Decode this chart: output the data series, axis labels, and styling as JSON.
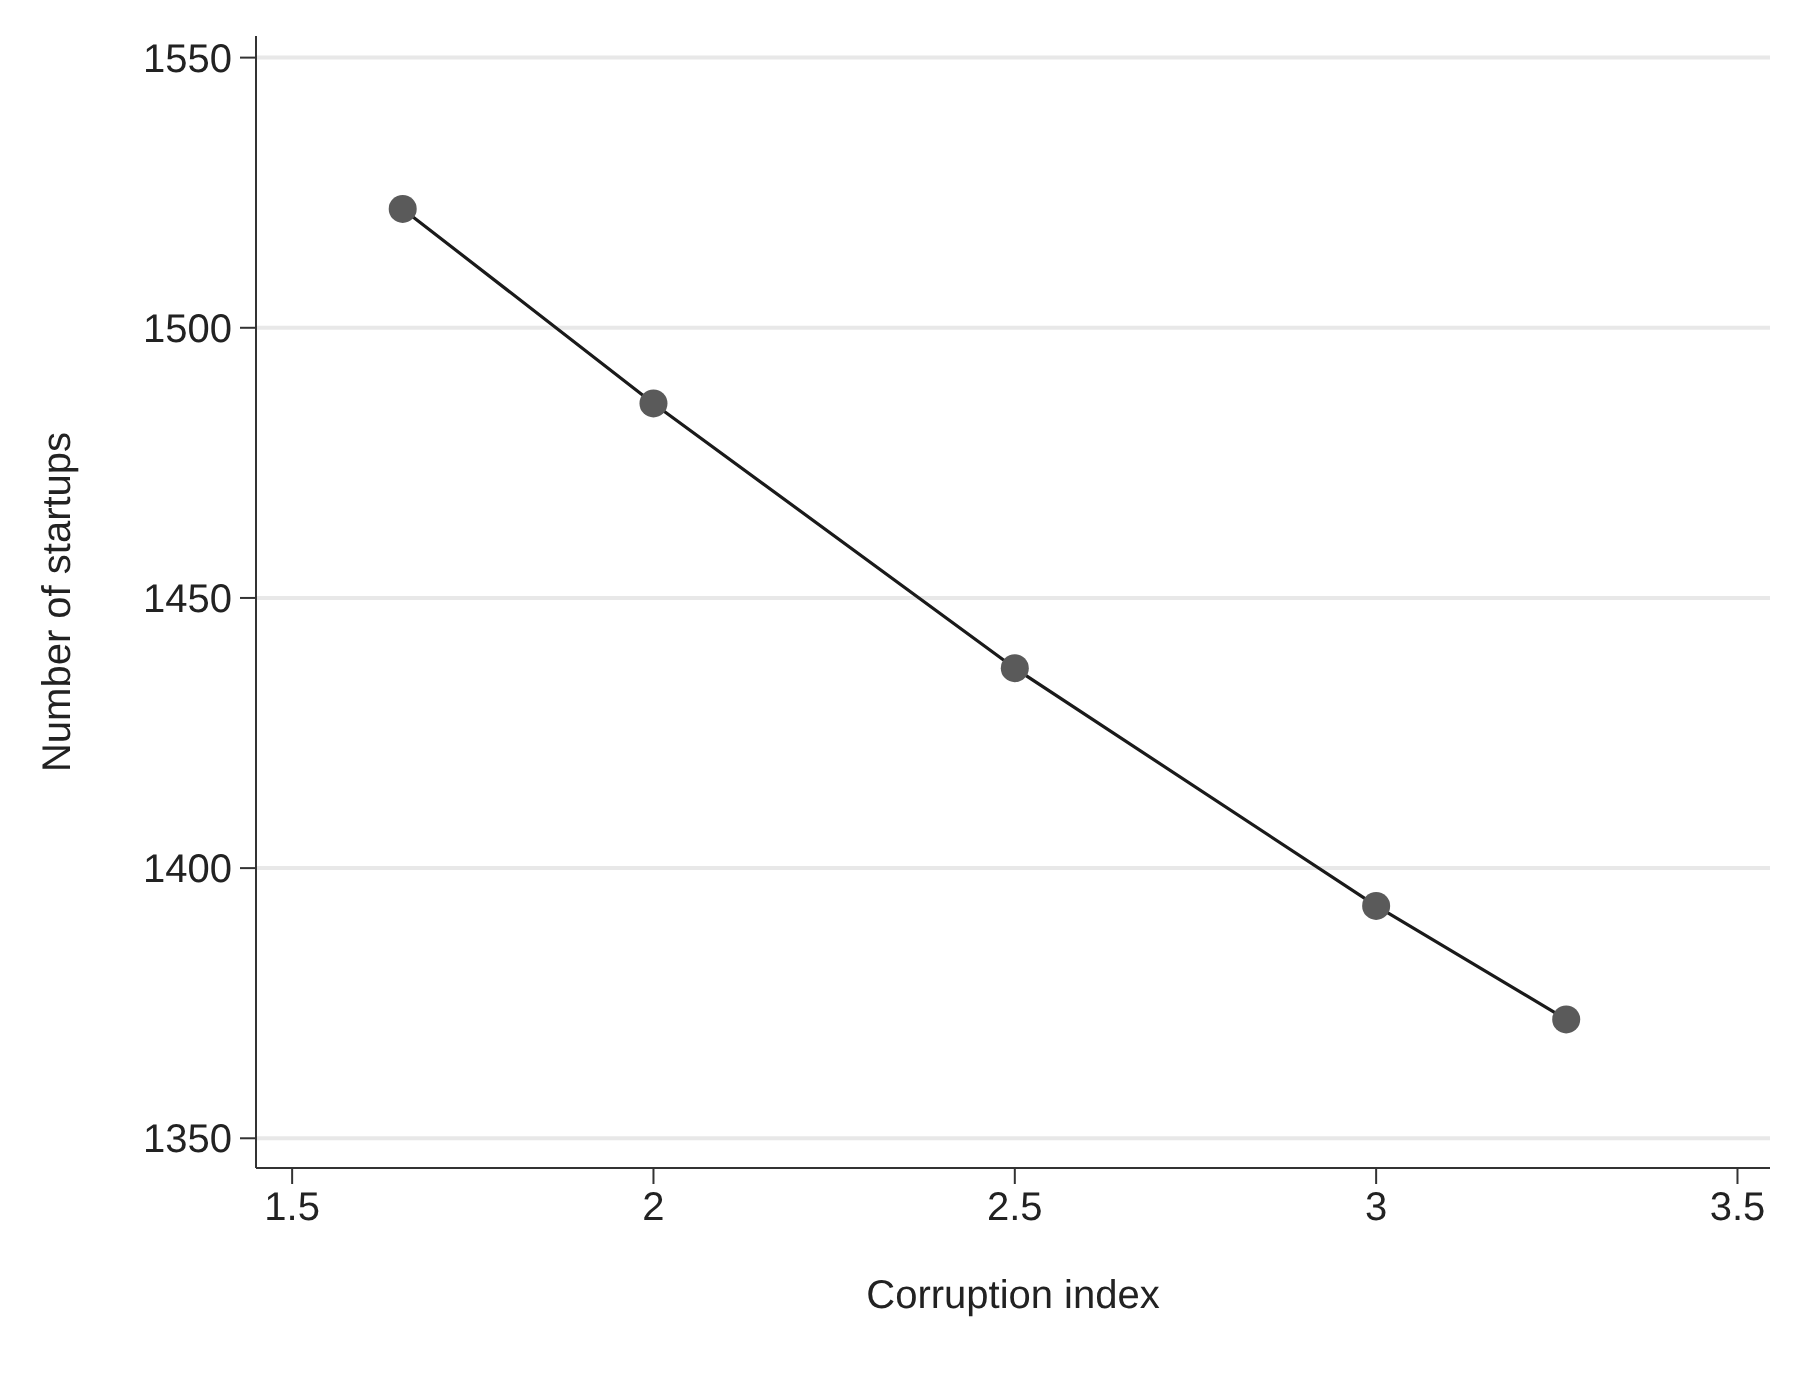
{
  "chart_data": {
    "type": "line",
    "xlabel": "Corruption index",
    "ylabel": "Number of startups",
    "x": [
      1.653,
      2,
      2.5,
      3,
      3.263
    ],
    "series": [
      {
        "color": "#1a1a1a",
        "values": [
          1522,
          1486,
          1437,
          1393,
          1372
        ]
      }
    ],
    "xlim": [
      1.45,
      3.545
    ],
    "xticks": [
      1.5,
      2,
      2.5,
      3,
      3.5
    ],
    "ylim": [
      1344.5,
      1554
    ],
    "yticks": [
      1350,
      1400,
      1450,
      1500,
      1550
    ],
    "grid": "y",
    "marker": "circle",
    "line_style": "solid"
  }
}
